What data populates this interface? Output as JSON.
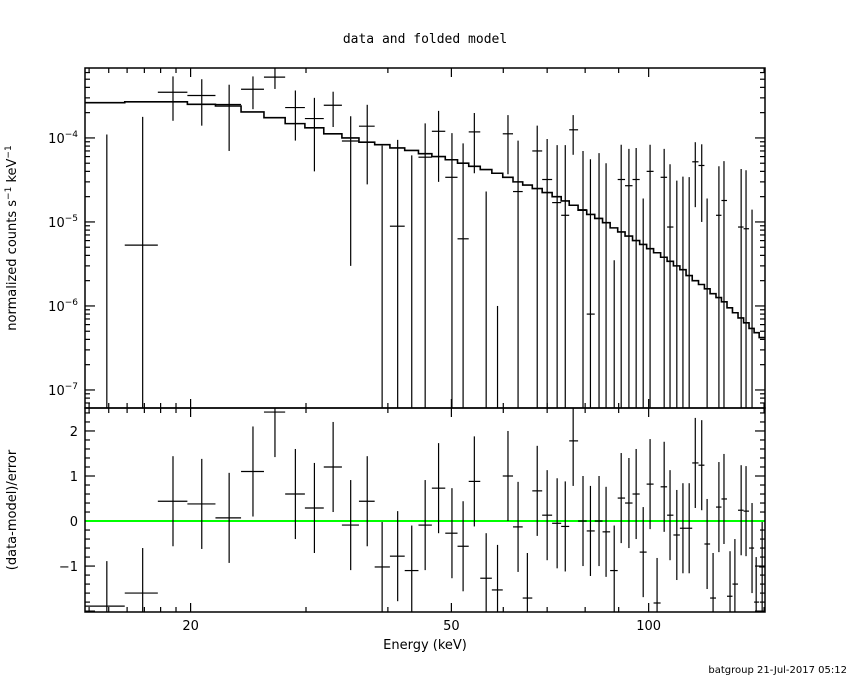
{
  "chart_data": [
    {
      "type": "scatter",
      "panel": "top",
      "title": "data and folded model",
      "ylabel": "normalized counts s^-1 keV^-1",
      "ylabel_parts": {
        "text": "normalized counts s",
        "exp1": "−1",
        "mid": " keV",
        "exp2": "−1"
      },
      "xscale": "log",
      "yscale": "log",
      "xlim": [
        13.8,
        150.5
      ],
      "ylim": [
        6.1e-08,
        0.00068
      ],
      "ytick_labels": [
        {
          "value": 0.0001,
          "base": "10",
          "exp": "−4"
        },
        {
          "value": 1e-05,
          "base": "10",
          "exp": "−5"
        },
        {
          "value": 1e-06,
          "base": "10",
          "exp": "−6"
        },
        {
          "value": 1e-07,
          "base": "10",
          "exp": "−7"
        }
      ],
      "grid": false,
      "energy_keV": [
        14.9,
        16.9,
        18.8,
        20.8,
        22.9,
        24.9,
        26.9,
        28.9,
        30.9,
        33.0,
        35.1,
        37.2,
        39.2,
        41.4,
        43.5,
        45.6,
        47.8,
        50.1,
        52.1,
        54.2,
        56.5,
        58.8,
        61.0,
        63.2,
        65.3,
        67.6,
        70.0,
        72.5,
        74.6,
        76.7,
        79.4,
        81.5,
        84.0,
        86.1,
        88.6,
        90.8,
        93.3,
        95.7,
        98.1,
        100.5,
        103.0,
        105.6,
        107.8,
        110.4,
        112.8,
        115.3,
        117.8,
        120.5,
        122.8,
        125.4,
        128.0,
        130.3,
        133.1,
        135.4,
        138.4,
        140.8,
        143.8,
        145.9,
        149.0
      ],
      "data": [
        -5.9e-05,
        5.3e-06,
        0.00035,
        0.00032,
        0.00025,
        0.00038,
        0.00053,
        0.00023,
        0.00017,
        0.000245,
        9.2e-05,
        0.000138,
        -1.9e-05,
        8.9e-06,
        -2.8e-05,
        5.9e-05,
        0.00012,
        3.4e-05,
        6.3e-06,
        0.000118,
        -4.7e-05,
        -6.9e-05,
        0.000112,
        2.3e-05,
        -8.9e-05,
        7e-05,
        3.2e-05,
        1.7e-05,
        1.2e-05,
        0.000125,
        1.4e-05,
        8e-07,
        1.1e-05,
        -2e-06,
        -4.65e-05,
        3.2e-05,
        2.7e-05,
        3.2e-05,
        -2.6e-05,
        4e-05,
        -7.2e-05,
        3.4e-05,
        8.7e-06,
        -9e-06,
        -3.4e-06,
        -3.8e-06,
        5.2e-05,
        4.7e-05,
        -1.7e-05,
        -5.8e-05,
        1.2e-05,
        1.8e-05,
        -5.6e-05,
        -4.7e-05,
        8.7e-06,
        8.3e-06,
        -1.9e-05,
        -5.9e-05,
        -3.3e-05
      ],
      "error": [
        0.000169,
        0.000173,
        0.00019,
        0.00018,
        0.00018,
        0.00016,
        0.000147,
        0.000137,
        0.00013,
        0.00011,
        8.9e-05,
        0.00011,
        0.0001,
        8.6e-05,
        9e-05,
        9e-05,
        9e-05,
        8e-05,
        8e-05,
        8e-05,
        7e-05,
        7e-05,
        7.5e-05,
        7e-05,
        6.8e-05,
        7e-05,
        6.5e-05,
        6.5e-05,
        7e-05,
        6.2e-05,
        5.6e-05,
        5.5e-05,
        5.5e-05,
        5.2e-05,
        5e-05,
        5.1e-05,
        4.7e-05,
        4.4e-05,
        4.5e-05,
        4.3e-05,
        4.2e-05,
        4e-05,
        4e-05,
        4e-05,
        3.8e-05,
        3.8e-05,
        3.7e-05,
        3.7e-05,
        3.6e-05,
        3.5e-05,
        3.4e-05,
        3.5e-05,
        3.4e-05,
        3.4e-05,
        3.4e-05,
        3.3e-05,
        3.3e-05,
        3.3e-05,
        3.3e-05
      ],
      "model": [
        0.000263,
        0.000269,
        0.000269,
        0.000251,
        0.00024,
        0.000204,
        0.000174,
        0.000148,
        0.000132,
        0.000112,
        0.0001,
        8.9e-05,
        8.3e-05,
        7.6e-05,
        7.1e-05,
        6.5e-05,
        6e-05,
        5.5e-05,
        5e-05,
        4.6e-05,
        4.2e-05,
        3.8e-05,
        3.4e-05,
        3e-05,
        2.75e-05,
        2.5e-05,
        2.24e-05,
        2e-05,
        1.78e-05,
        1.58e-05,
        1.38e-05,
        1.23e-05,
        1.1e-05,
        9.8e-06,
        8.5e-06,
        7.6e-06,
        6.8e-06,
        6e-06,
        5.4e-06,
        4.8e-06,
        4.3e-06,
        3.8e-06,
        3.4e-06,
        3e-06,
        2.7e-06,
        2.3e-06,
        2e-06,
        1.8e-06,
        1.6e-06,
        1.4e-06,
        1.26e-06,
        1.12e-06,
        9.5e-07,
        8.3e-07,
        7.2e-07,
        6.3e-07,
        5.4e-07,
        4.8e-07,
        4.2e-07
      ]
    },
    {
      "type": "scatter",
      "panel": "bottom",
      "ylabel": "(data-model)/error",
      "xlabel": "Energy (keV)",
      "xscale": "log",
      "xlim": [
        13.8,
        150.5
      ],
      "ylim": [
        -2.02,
        2.51
      ],
      "ytick_labels": [
        {
          "value": 2,
          "label": "2"
        },
        {
          "value": 1,
          "label": "1"
        },
        {
          "value": 0,
          "label": "0"
        },
        {
          "value": -1,
          "label": "−1"
        }
      ],
      "xtick_labels": [
        {
          "value": 20,
          "label": "20"
        },
        {
          "value": 50,
          "label": "50"
        },
        {
          "value": 100,
          "label": "100"
        }
      ],
      "zero_line_color": "#00ff00",
      "residual": [
        -1.89,
        -1.6,
        0.44,
        0.38,
        0.07,
        1.1,
        2.42,
        0.6,
        0.29,
        1.2,
        -0.09,
        0.44,
        -1.02,
        -0.78,
        -1.1,
        -0.09,
        0.73,
        -0.27,
        -0.56,
        0.88,
        -1.27,
        -1.53,
        1.0,
        -0.13,
        -1.71,
        0.67,
        0.13,
        -0.05,
        -0.12,
        1.78,
        0.0,
        -0.22,
        0.0,
        -0.24,
        -1.1,
        0.51,
        0.4,
        0.6,
        -0.69,
        0.82,
        -1.82,
        0.76,
        0.13,
        -0.31,
        -0.16,
        -0.16,
        1.29,
        1.24,
        -0.51,
        -1.71,
        0.31,
        0.49,
        -1.67,
        -1.4,
        0.24,
        0.22,
        -0.6,
        -1.8,
        -1.02
      ],
      "residual_error": 1
    }
  ],
  "footer": "batgroup 21-Jul-2017 05:12"
}
